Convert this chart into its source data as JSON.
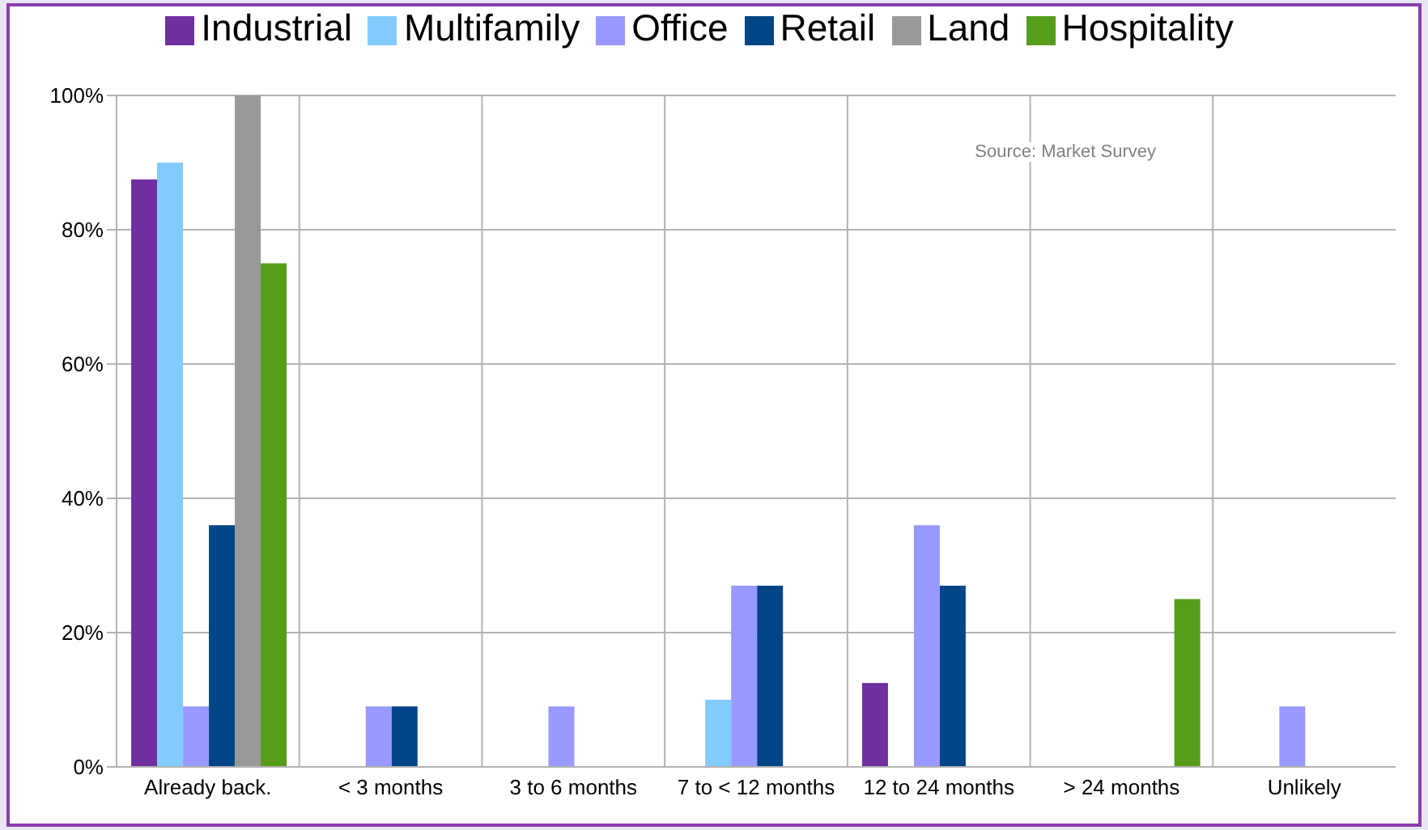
{
  "chart_data": {
    "type": "bar",
    "categories": [
      "Already back.",
      "< 3 months",
      "3 to 6 months",
      "7 to < 12 months",
      "12 to 24 months",
      "> 24 months",
      "Unlikely"
    ],
    "series": [
      {
        "name": "Industrial",
        "color": "#7030a0",
        "values": [
          87.5,
          0,
          0,
          0,
          12.5,
          0,
          0
        ]
      },
      {
        "name": "Multifamily",
        "color": "#83caff",
        "values": [
          90,
          0,
          0,
          10,
          0,
          0,
          0
        ]
      },
      {
        "name": "Office",
        "color": "#9999ff",
        "values": [
          9,
          9,
          9,
          27,
          36,
          0,
          9
        ]
      },
      {
        "name": "Retail",
        "color": "#004586",
        "values": [
          36,
          9,
          0,
          27,
          27,
          0,
          0
        ]
      },
      {
        "name": "Land",
        "color": "#999999",
        "values": [
          100,
          0,
          0,
          0,
          0,
          0,
          0
        ]
      },
      {
        "name": "Hospitality",
        "color": "#579d1c",
        "values": [
          75,
          0,
          0,
          0,
          0,
          25,
          0
        ]
      }
    ],
    "ylim": [
      0,
      100
    ],
    "yticks": [
      {
        "value": 0,
        "label": "0%"
      },
      {
        "value": 20,
        "label": "20%"
      },
      {
        "value": 40,
        "label": "40%"
      },
      {
        "value": 60,
        "label": "60%"
      },
      {
        "value": 80,
        "label": "80%"
      },
      {
        "value": 100,
        "label": "100%"
      }
    ],
    "grid": true,
    "legend": "top",
    "annotations": [
      "Source: Market Survey"
    ]
  }
}
